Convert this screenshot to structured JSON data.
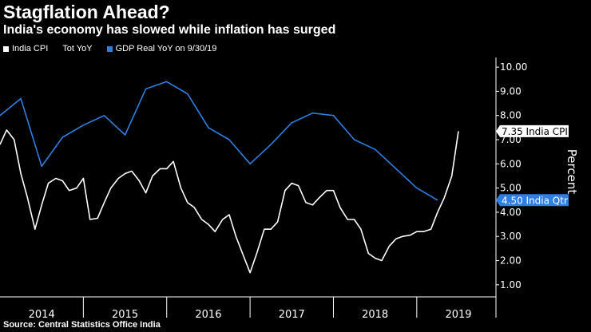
{
  "header": {
    "title": "Stagflation Ahead?",
    "subtitle": "India's economy has slowed while inflation has surged"
  },
  "footer": {
    "source": "Source: Central Statistics Office India"
  },
  "colors": {
    "background": "#000000",
    "cpi": "#ffffff",
    "gdp": "#2f7fe0",
    "axis": "#ffffff",
    "cpi_label_bg": "#ffffff",
    "cpi_label_text": "#000000",
    "gdp_label_bg": "#2f7fe0",
    "gdp_label_text": "#ffffff"
  },
  "chart_data": {
    "type": "line",
    "title": "Stagflation Ahead?",
    "subtitle": "India's economy has slowed while inflation has surged",
    "xlabel": "",
    "ylabel": "Percent",
    "x_categories": [
      "2014",
      "2015",
      "2016",
      "2017",
      "2018",
      "2019"
    ],
    "xlim": [
      2014.0,
      2019.95
    ],
    "ylim": [
      0.5,
      10.4
    ],
    "yticks": [
      1.0,
      2.0,
      3.0,
      4.0,
      5.0,
      6.0,
      7.0,
      8.0,
      9.0,
      10.0
    ],
    "ytick_labels": [
      "1.00",
      "2.00",
      "3.00",
      "4.00",
      "5.00",
      "6.00",
      "7.00",
      "8.00",
      "9.00",
      "10.00"
    ],
    "grid": false,
    "legend_position": "top-left",
    "legend": [
      {
        "label": "India CPI",
        "color": "#ffffff"
      },
      {
        "label": "Tot YoY",
        "color": "none"
      },
      {
        "label": "GDP Real YoY on 9/30/19",
        "color": "#2f7fe0"
      }
    ],
    "series": [
      {
        "name": "India CPI",
        "color": "#ffffff",
        "end_label": "7.35 India CPI",
        "points": [
          [
            2014.0,
            6.8
          ],
          [
            2014.08,
            7.4
          ],
          [
            2014.17,
            7.0
          ],
          [
            2014.25,
            5.6
          ],
          [
            2014.33,
            4.6
          ],
          [
            2014.42,
            3.3
          ],
          [
            2014.5,
            4.3
          ],
          [
            2014.58,
            5.2
          ],
          [
            2014.67,
            5.4
          ],
          [
            2014.75,
            5.3
          ],
          [
            2014.83,
            4.9
          ],
          [
            2014.92,
            5.0
          ],
          [
            2015.0,
            5.4
          ],
          [
            2015.08,
            3.7
          ],
          [
            2015.17,
            3.75
          ],
          [
            2015.25,
            4.4
          ],
          [
            2015.33,
            5.0
          ],
          [
            2015.42,
            5.4
          ],
          [
            2015.5,
            5.6
          ],
          [
            2015.58,
            5.7
          ],
          [
            2015.67,
            5.3
          ],
          [
            2015.75,
            4.8
          ],
          [
            2015.83,
            5.5
          ],
          [
            2015.92,
            5.8
          ],
          [
            2016.0,
            5.8
          ],
          [
            2016.08,
            6.1
          ],
          [
            2016.17,
            5.0
          ],
          [
            2016.25,
            4.4
          ],
          [
            2016.33,
            4.2
          ],
          [
            2016.42,
            3.7
          ],
          [
            2016.5,
            3.5
          ],
          [
            2016.58,
            3.2
          ],
          [
            2016.67,
            3.7
          ],
          [
            2016.75,
            3.9
          ],
          [
            2016.83,
            3.0
          ],
          [
            2016.92,
            2.2
          ],
          [
            2017.0,
            1.5
          ],
          [
            2017.08,
            2.3
          ],
          [
            2017.17,
            3.3
          ],
          [
            2017.25,
            3.3
          ],
          [
            2017.33,
            3.6
          ],
          [
            2017.42,
            4.9
          ],
          [
            2017.5,
            5.2
          ],
          [
            2017.58,
            5.1
          ],
          [
            2017.67,
            4.4
          ],
          [
            2017.75,
            4.3
          ],
          [
            2017.83,
            4.6
          ],
          [
            2017.92,
            4.9
          ],
          [
            2018.0,
            4.9
          ],
          [
            2018.08,
            4.2
          ],
          [
            2018.17,
            3.7
          ],
          [
            2018.25,
            3.7
          ],
          [
            2018.33,
            3.3
          ],
          [
            2018.42,
            2.3
          ],
          [
            2018.5,
            2.1
          ],
          [
            2018.58,
            2.0
          ],
          [
            2018.67,
            2.6
          ],
          [
            2018.75,
            2.9
          ],
          [
            2018.83,
            3.0
          ],
          [
            2018.92,
            3.05
          ],
          [
            2019.0,
            3.2
          ],
          [
            2019.08,
            3.2
          ],
          [
            2019.17,
            3.3
          ],
          [
            2019.25,
            4.0
          ],
          [
            2019.33,
            4.6
          ],
          [
            2019.42,
            5.5
          ],
          [
            2019.5,
            7.35
          ]
        ]
      },
      {
        "name": "GDP Real YoY on 9/30/19",
        "color": "#2f7fe0",
        "end_label": "4.50 India Qtr",
        "points": [
          [
            2014.0,
            8.0
          ],
          [
            2014.25,
            8.7
          ],
          [
            2014.5,
            5.9
          ],
          [
            2014.75,
            7.1
          ],
          [
            2015.0,
            7.6
          ],
          [
            2015.25,
            8.0
          ],
          [
            2015.5,
            7.2
          ],
          [
            2015.75,
            9.1
          ],
          [
            2016.0,
            9.4
          ],
          [
            2016.25,
            8.9
          ],
          [
            2016.5,
            7.5
          ],
          [
            2016.75,
            7.0
          ],
          [
            2017.0,
            6.0
          ],
          [
            2017.25,
            6.8
          ],
          [
            2017.5,
            7.7
          ],
          [
            2017.75,
            8.1
          ],
          [
            2018.0,
            8.0
          ],
          [
            2018.25,
            7.0
          ],
          [
            2018.5,
            6.6
          ],
          [
            2018.75,
            5.8
          ],
          [
            2019.0,
            5.0
          ],
          [
            2019.25,
            4.5
          ]
        ]
      }
    ]
  }
}
